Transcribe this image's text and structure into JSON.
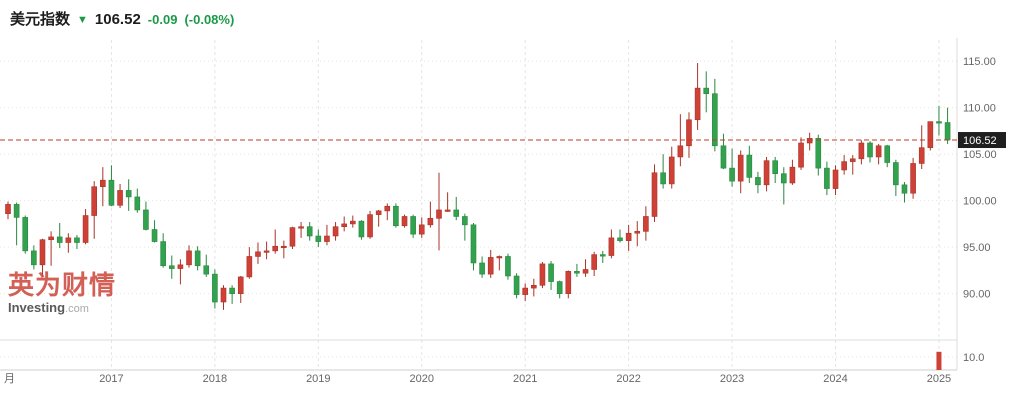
{
  "header": {
    "symbol": "美元指数",
    "direction_arrow": "▼",
    "last": "106.52",
    "change": "-0.09",
    "change_pct": "(-0.08%)",
    "change_color": "#1a9a48"
  },
  "watermark": {
    "cn": "英为财情",
    "en_bold": "Investing",
    "en_light": ".com"
  },
  "chart_data": {
    "type": "candlestick",
    "title": "美元指数 月线图",
    "timeframe_label": "月",
    "x_axis_labels": [
      "2017",
      "2018",
      "2019",
      "2020",
      "2021",
      "2022",
      "2023",
      "2024",
      "2025"
    ],
    "y_axis_ticks": [
      115,
      110,
      105,
      100,
      95,
      90
    ],
    "y_axis_tick_labels": [
      "115.00",
      "110.00",
      "105.00",
      "100.00",
      "95.00",
      "90.00"
    ],
    "last_price": 106.52,
    "last_price_label": "106.52",
    "volume_tick_label": "10.0",
    "start_month": "2016-01",
    "colors": {
      "up_fill": "#cf4136",
      "up_stroke": "#a83328",
      "down_fill": "#33a24f",
      "down_stroke": "#28873f",
      "grid": "#e4e4e4",
      "axis_text": "#666666",
      "last_price_line": "#c0392b",
      "last_price_box": "#1f1f1f"
    },
    "candles": [
      [
        98.6,
        99.9,
        98.0,
        99.6
      ],
      [
        99.6,
        99.8,
        95.2,
        98.2
      ],
      [
        98.2,
        98.4,
        94.3,
        94.6
      ],
      [
        94.6,
        95.2,
        92.6,
        93.1
      ],
      [
        93.1,
        95.9,
        91.9,
        95.8
      ],
      [
        95.8,
        96.7,
        93.0,
        96.1
      ],
      [
        96.1,
        97.6,
        94.9,
        95.5
      ],
      [
        95.5,
        96.5,
        94.4,
        96.0
      ],
      [
        96.0,
        96.3,
        94.8,
        95.5
      ],
      [
        95.5,
        99.1,
        95.3,
        98.4
      ],
      [
        98.4,
        102.1,
        95.9,
        101.5
      ],
      [
        101.5,
        103.6,
        99.4,
        102.2
      ],
      [
        102.2,
        103.8,
        99.4,
        99.5
      ],
      [
        99.5,
        101.8,
        99.2,
        101.1
      ],
      [
        101.1,
        102.3,
        98.9,
        100.4
      ],
      [
        100.4,
        101.3,
        98.7,
        99.0
      ],
      [
        99.0,
        99.9,
        96.8,
        96.9
      ],
      [
        96.9,
        97.9,
        95.5,
        95.6
      ],
      [
        95.6,
        96.5,
        92.8,
        93.0
      ],
      [
        93.0,
        94.1,
        91.6,
        92.7
      ],
      [
        92.7,
        93.7,
        91.0,
        93.1
      ],
      [
        93.1,
        95.2,
        92.8,
        94.6
      ],
      [
        94.6,
        95.1,
        92.5,
        93.0
      ],
      [
        93.0,
        94.2,
        91.8,
        92.1
      ],
      [
        92.1,
        92.6,
        88.4,
        89.1
      ],
      [
        89.1,
        90.9,
        88.25,
        90.6
      ],
      [
        90.6,
        90.9,
        88.9,
        90.0
      ],
      [
        90.0,
        91.9,
        89.0,
        91.8
      ],
      [
        91.8,
        95.0,
        91.6,
        94.0
      ],
      [
        94.0,
        95.5,
        93.2,
        94.5
      ],
      [
        94.5,
        95.6,
        93.7,
        94.6
      ],
      [
        94.6,
        96.9,
        94.3,
        95.1
      ],
      [
        95.1,
        95.7,
        93.8,
        95.1
      ],
      [
        95.1,
        97.2,
        94.8,
        97.1
      ],
      [
        97.1,
        97.7,
        96.0,
        97.2
      ],
      [
        97.2,
        97.7,
        95.7,
        96.2
      ],
      [
        96.2,
        96.9,
        95.0,
        95.6
      ],
      [
        95.6,
        97.4,
        95.2,
        96.2
      ],
      [
        96.2,
        97.7,
        95.7,
        97.2
      ],
      [
        97.2,
        98.3,
        96.7,
        97.5
      ],
      [
        97.5,
        98.4,
        97.1,
        97.8
      ],
      [
        97.8,
        97.9,
        95.8,
        96.1
      ],
      [
        96.1,
        98.9,
        95.9,
        98.5
      ],
      [
        98.5,
        99.0,
        97.2,
        98.9
      ],
      [
        98.9,
        99.7,
        97.9,
        99.4
      ],
      [
        99.4,
        99.7,
        97.1,
        97.3
      ],
      [
        97.3,
        98.5,
        97.1,
        98.3
      ],
      [
        98.3,
        98.5,
        96.0,
        96.4
      ],
      [
        96.4,
        98.2,
        96.0,
        97.4
      ],
      [
        97.4,
        99.9,
        97.1,
        98.1
      ],
      [
        98.1,
        103.0,
        94.65,
        99.0
      ],
      [
        99.0,
        100.9,
        98.8,
        99.0
      ],
      [
        99.0,
        100.4,
        97.9,
        98.3
      ],
      [
        98.3,
        98.6,
        95.7,
        97.4
      ],
      [
        97.4,
        97.6,
        92.5,
        93.3
      ],
      [
        93.3,
        94.0,
        91.7,
        92.1
      ],
      [
        92.1,
        94.7,
        91.7,
        93.9
      ],
      [
        93.9,
        94.1,
        92.5,
        94.0
      ],
      [
        94.0,
        94.3,
        91.5,
        91.9
      ],
      [
        91.9,
        92.2,
        89.5,
        89.9
      ],
      [
        89.9,
        91.1,
        89.2,
        90.6
      ],
      [
        90.6,
        91.6,
        89.7,
        90.9
      ],
      [
        90.9,
        93.4,
        90.6,
        93.2
      ],
      [
        93.2,
        93.5,
        90.4,
        91.3
      ],
      [
        91.3,
        91.4,
        89.5,
        90.0
      ],
      [
        90.0,
        92.5,
        89.5,
        92.4
      ],
      [
        92.4,
        93.2,
        91.8,
        92.2
      ],
      [
        92.2,
        93.7,
        91.8,
        92.6
      ],
      [
        92.6,
        94.5,
        91.9,
        94.2
      ],
      [
        94.2,
        94.6,
        93.3,
        94.1
      ],
      [
        94.1,
        96.9,
        93.8,
        96.0
      ],
      [
        96.0,
        96.9,
        95.5,
        95.7
      ],
      [
        95.7,
        97.4,
        94.6,
        96.5
      ],
      [
        96.5,
        97.8,
        95.1,
        96.7
      ],
      [
        96.7,
        99.4,
        95.7,
        98.3
      ],
      [
        98.3,
        103.9,
        97.7,
        103.0
      ],
      [
        103.0,
        105.0,
        101.3,
        101.8
      ],
      [
        101.8,
        105.8,
        101.3,
        104.7
      ],
      [
        104.7,
        109.3,
        103.7,
        105.9
      ],
      [
        105.9,
        109.5,
        104.6,
        108.7
      ],
      [
        108.7,
        114.8,
        107.6,
        112.1
      ],
      [
        112.1,
        113.9,
        109.5,
        111.5
      ],
      [
        111.5,
        113.1,
        105.3,
        105.9
      ],
      [
        105.9,
        107.2,
        103.4,
        103.5
      ],
      [
        103.5,
        105.6,
        101.5,
        102.1
      ],
      [
        102.1,
        105.4,
        100.8,
        104.9
      ],
      [
        104.9,
        105.9,
        101.9,
        102.5
      ],
      [
        102.5,
        103.1,
        100.8,
        101.7
      ],
      [
        101.7,
        104.7,
        101.0,
        104.3
      ],
      [
        104.3,
        104.7,
        101.9,
        102.9
      ],
      [
        102.9,
        103.6,
        99.6,
        101.9
      ],
      [
        101.9,
        104.4,
        101.7,
        103.6
      ],
      [
        103.6,
        106.8,
        103.3,
        106.2
      ],
      [
        106.2,
        107.3,
        105.4,
        106.7
      ],
      [
        106.7,
        107.1,
        102.7,
        103.5
      ],
      [
        103.5,
        104.2,
        100.6,
        101.3
      ],
      [
        101.3,
        103.8,
        100.6,
        103.3
      ],
      [
        103.3,
        104.9,
        102.8,
        104.2
      ],
      [
        104.2,
        104.9,
        102.8,
        104.5
      ],
      [
        104.5,
        106.5,
        103.9,
        106.2
      ],
      [
        106.2,
        106.4,
        104.1,
        104.7
      ],
      [
        104.7,
        106.1,
        103.9,
        105.9
      ],
      [
        105.9,
        106.0,
        103.6,
        104.1
      ],
      [
        104.1,
        104.4,
        100.5,
        101.7
      ],
      [
        101.7,
        102.0,
        99.8,
        100.8
      ],
      [
        100.8,
        104.6,
        100.2,
        104.0
      ],
      [
        104.0,
        108.1,
        103.4,
        105.7
      ],
      [
        105.7,
        108.5,
        105.4,
        108.5
      ],
      [
        108.5,
        110.2,
        107.0,
        108.4
      ],
      [
        108.4,
        110.0,
        106.1,
        106.52
      ]
    ],
    "volume_range": [
      0,
      20
    ],
    "volume_bars": [
      {
        "index": 108,
        "value": 14,
        "direction": "up"
      }
    ]
  }
}
